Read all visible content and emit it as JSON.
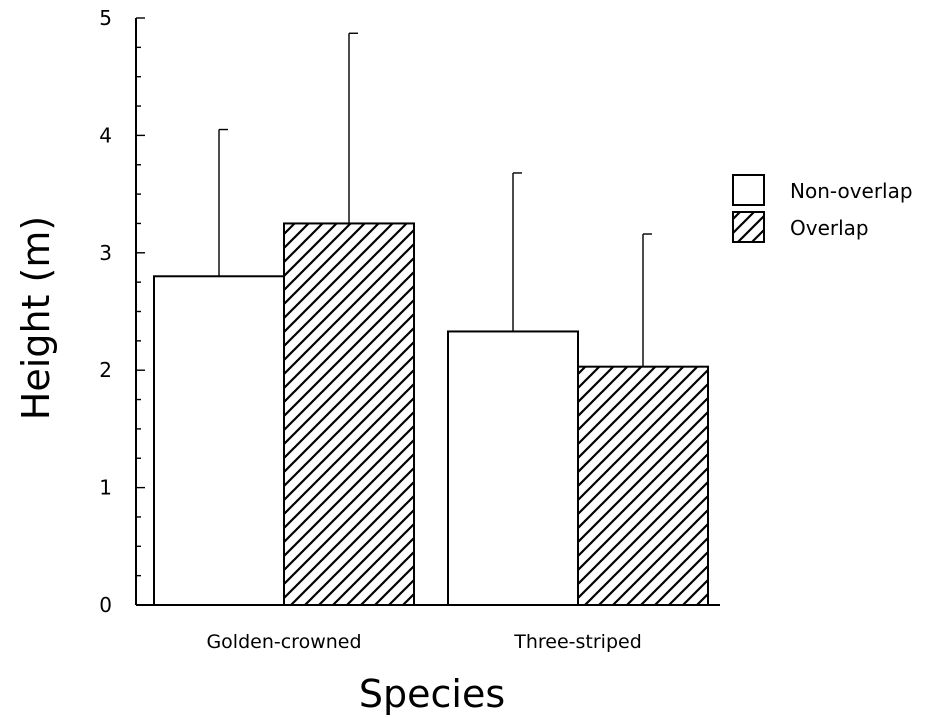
{
  "chart_data": {
    "type": "bar",
    "title": "",
    "xlabel": "Species",
    "ylabel": "Height (m)",
    "ylim": [
      0,
      5
    ],
    "yticks": [
      0,
      1,
      2,
      3,
      4,
      5
    ],
    "categories": [
      "Golden-crowned",
      "Three-striped"
    ],
    "series": [
      {
        "name": "Non-overlap",
        "fill": "none",
        "values": [
          2.8,
          2.33
        ],
        "error_upper": [
          4.05,
          3.68
        ]
      },
      {
        "name": "Overlap",
        "fill": "hatch",
        "values": [
          3.25,
          2.03
        ],
        "error_upper": [
          4.87,
          3.16
        ]
      }
    ],
    "legend_position": "right",
    "grid": false,
    "colors": {
      "bar_stroke": "#000000",
      "hatch": "#000000",
      "background": "#ffffff"
    }
  }
}
